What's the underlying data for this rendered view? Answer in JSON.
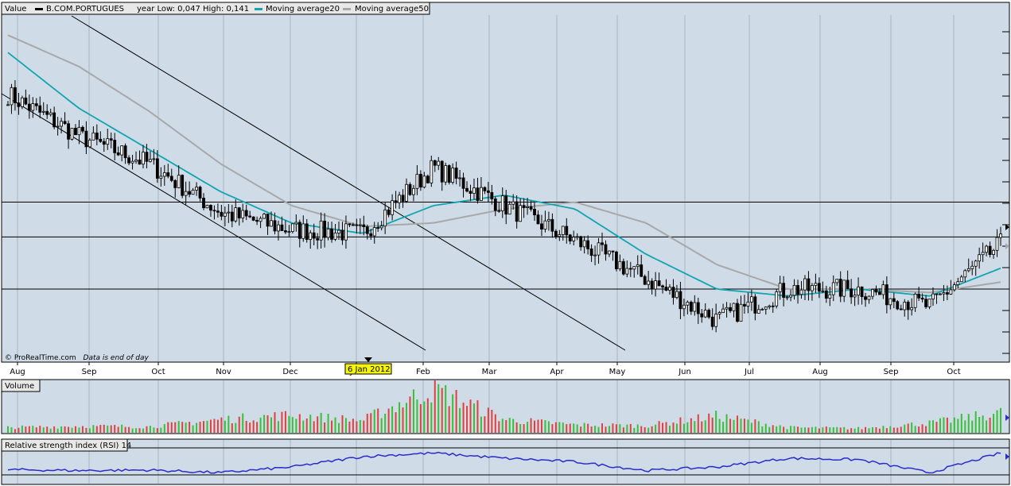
{
  "header": {
    "value_label": "Value",
    "ticker": "B.COM.PORTUGUES",
    "year_range": "year Low: 0,047  High: 0,141",
    "ma20_label": "Moving average20",
    "ma50_label": "Moving average50"
  },
  "footer": {
    "copyright": "© ProRealTime.com",
    "note": "Data is end of day"
  },
  "cursor_date": "6 Jan 2012",
  "months": [
    "Aug",
    "Sep",
    "Oct",
    "Nov",
    "Dec",
    "Jan",
    "Feb",
    "Mar",
    "Apr",
    "May",
    "Jun",
    "Jul",
    "Aug",
    "Sep",
    "Oct"
  ],
  "volume_panel": {
    "title": "Volume"
  },
  "rsi_panel": {
    "title": "Relative strength index (RSI) 14"
  },
  "colors": {
    "plot_bg": "#cfdbe6",
    "grid": "#a9b6c2",
    "candle": "#000000",
    "ma20": "#10a5b0",
    "ma50": "#a8a8a8",
    "rsi": "#2b2bcc",
    "vol_up": "#38c038",
    "vol_down": "#e04040",
    "marker": "#f7f700"
  },
  "chart_data": [
    {
      "type": "candlestick",
      "title": "B.COM.PORTUGUES",
      "x": [
        "Aug",
        "Sep",
        "Oct",
        "Nov",
        "Dec",
        "Jan",
        "Feb",
        "Mar",
        "Apr",
        "May",
        "Jun",
        "Jul",
        "Aug",
        "Sep",
        "Oct"
      ],
      "series": [
        {
          "name": "B.COM.PORTUGUES",
          "values": [
            0.122,
            0.11,
            0.102,
            0.088,
            0.083,
            0.082,
            0.101,
            0.09,
            0.08,
            0.069,
            0.057,
            0.066,
            0.066,
            0.061,
            0.079
          ]
        },
        {
          "name": "Moving average20",
          "values": [
            0.134,
            0.118,
            0.106,
            0.094,
            0.085,
            0.082,
            0.09,
            0.093,
            0.089,
            0.076,
            0.066,
            0.064,
            0.066,
            0.064,
            0.072
          ]
        },
        {
          "name": "Moving average50",
          "values": [
            0.139,
            0.13,
            0.117,
            0.102,
            0.09,
            0.084,
            0.085,
            0.089,
            0.091,
            0.085,
            0.073,
            0.066,
            0.066,
            0.065,
            0.068
          ]
        }
      ],
      "horizontal_lines": [
        0.091,
        0.081,
        0.066
      ],
      "year_low": 0.047,
      "year_high": 0.141,
      "grid": true
    },
    {
      "type": "bar",
      "title": "Volume",
      "x": [
        "Aug",
        "Sep",
        "Oct",
        "Nov",
        "Dec",
        "Jan",
        "Feb",
        "Mar",
        "Apr",
        "May",
        "Jun",
        "Jul",
        "Aug",
        "Sep",
        "Oct"
      ],
      "values": [
        0.12,
        0.15,
        0.14,
        0.3,
        0.4,
        0.28,
        1.0,
        0.3,
        0.18,
        0.16,
        0.38,
        0.12,
        0.1,
        0.22,
        0.45
      ]
    },
    {
      "type": "line",
      "title": "Relative strength index (RSI) 14",
      "x": [
        "Aug",
        "Sep",
        "Oct",
        "Nov",
        "Dec",
        "Jan",
        "Feb",
        "Mar",
        "Apr",
        "May",
        "Jun",
        "Jul",
        "Aug",
        "Sep",
        "Oct"
      ],
      "values": [
        32,
        30,
        31,
        25,
        38,
        62,
        70,
        58,
        50,
        30,
        38,
        58,
        55,
        25,
        70
      ]
    }
  ]
}
